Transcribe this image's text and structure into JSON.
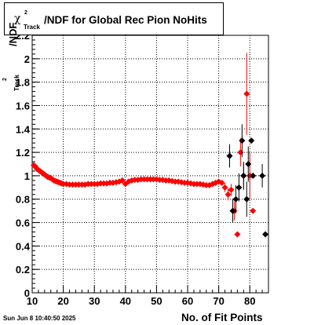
{
  "chart_data": {
    "type": "scatter",
    "title": "/NDF for Global Rec Pion NoHits",
    "title_symbol": "χ",
    "title_superscript": "2",
    "title_subscript": "Track",
    "xlabel": "No. of Fit Points",
    "ylabel": "/NDF",
    "ylabel_superscript": "2",
    "ylabel_subscript": "Track",
    "xlim": [
      10,
      86
    ],
    "ylim": [
      0,
      2.2
    ],
    "x_ticks": [
      10,
      20,
      30,
      40,
      50,
      60,
      70,
      80
    ],
    "y_ticks": [
      0,
      0.2,
      0.4,
      0.6,
      0.8,
      1,
      1.2,
      1.4,
      1.6,
      1.8,
      2,
      2.2
    ],
    "grid": true,
    "legend": "none",
    "series": [
      {
        "color": "#ff0000",
        "marker": "diamond",
        "x": [
          10.5,
          11,
          11.5,
          12,
          12.5,
          13,
          13.5,
          14,
          14.5,
          15,
          15.5,
          16,
          16.5,
          17,
          17.5,
          18,
          18.5,
          19,
          19.5,
          20,
          21,
          22,
          23,
          24,
          25,
          26,
          27,
          28,
          29,
          30,
          31,
          32,
          33,
          34,
          35,
          36,
          37,
          38,
          39,
          40,
          41,
          42,
          43,
          44,
          45,
          46,
          47,
          48,
          49,
          50,
          51,
          52,
          53,
          54,
          55,
          56,
          57,
          58,
          59,
          60,
          61,
          62,
          63,
          64,
          65,
          66,
          67,
          68,
          69,
          70,
          71,
          72,
          73,
          74,
          75,
          76,
          77,
          78,
          79,
          80,
          81
        ],
        "y": [
          1.09,
          1.08,
          1.06,
          1.05,
          1.04,
          1.03,
          1.02,
          1.01,
          1.0,
          0.99,
          0.985,
          0.98,
          0.97,
          0.96,
          0.955,
          0.95,
          0.945,
          0.94,
          0.935,
          0.93,
          0.93,
          0.925,
          0.925,
          0.925,
          0.925,
          0.925,
          0.925,
          0.93,
          0.93,
          0.93,
          0.93,
          0.935,
          0.935,
          0.935,
          0.94,
          0.94,
          0.945,
          0.95,
          0.96,
          0.93,
          0.95,
          0.96,
          0.965,
          0.965,
          0.97,
          0.97,
          0.97,
          0.97,
          0.97,
          0.97,
          0.965,
          0.965,
          0.96,
          0.96,
          0.955,
          0.95,
          0.95,
          0.945,
          0.94,
          0.94,
          0.935,
          0.93,
          0.93,
          0.93,
          0.925,
          0.92,
          0.92,
          0.93,
          0.94,
          0.95,
          0.94,
          0.9,
          0.84,
          0.88,
          0.7,
          0.5,
          1.2,
          1.0,
          1.7,
          1.0,
          0.7
        ],
        "yerr": [
          0.005,
          0.005,
          0.005,
          0.005,
          0.005,
          0.005,
          0.005,
          0.005,
          0.005,
          0.005,
          0.005,
          0.005,
          0.005,
          0.005,
          0.005,
          0.005,
          0.005,
          0.005,
          0.005,
          0.005,
          0.005,
          0.005,
          0.005,
          0.005,
          0.005,
          0.005,
          0.005,
          0.005,
          0.005,
          0.005,
          0.005,
          0.005,
          0.005,
          0.005,
          0.005,
          0.005,
          0.005,
          0.005,
          0.005,
          0.005,
          0.005,
          0.005,
          0.005,
          0.005,
          0.005,
          0.005,
          0.005,
          0.005,
          0.005,
          0.005,
          0.005,
          0.005,
          0.005,
          0.005,
          0.005,
          0.005,
          0.005,
          0.005,
          0.005,
          0.005,
          0.005,
          0.005,
          0.005,
          0.005,
          0.005,
          0.005,
          0.005,
          0.005,
          0.01,
          0.01,
          0.02,
          0.04,
          0.05,
          0.05,
          0.08,
          0.0,
          0.12,
          0.1,
          0.35,
          0.2,
          0.0
        ]
      },
      {
        "color": "#000000",
        "marker": "diamond",
        "x": [
          73.5,
          74.5,
          75.5,
          76.5,
          77.5,
          78,
          79,
          79.5,
          80.5,
          81,
          84,
          85
        ],
        "y": [
          1.17,
          0.7,
          0.8,
          0.9,
          1.3,
          1.0,
          0.8,
          1.1,
          1.3,
          1.0,
          1.0,
          0.5
        ],
        "yerr": [
          0.1,
          0.1,
          0.12,
          0.12,
          0.14,
          0.12,
          0.15,
          0.15,
          0.0,
          0.0,
          0.1,
          0.0
        ]
      }
    ]
  },
  "footer": {
    "datestamp": "Sun Jun  8 10:40:50 2025"
  }
}
